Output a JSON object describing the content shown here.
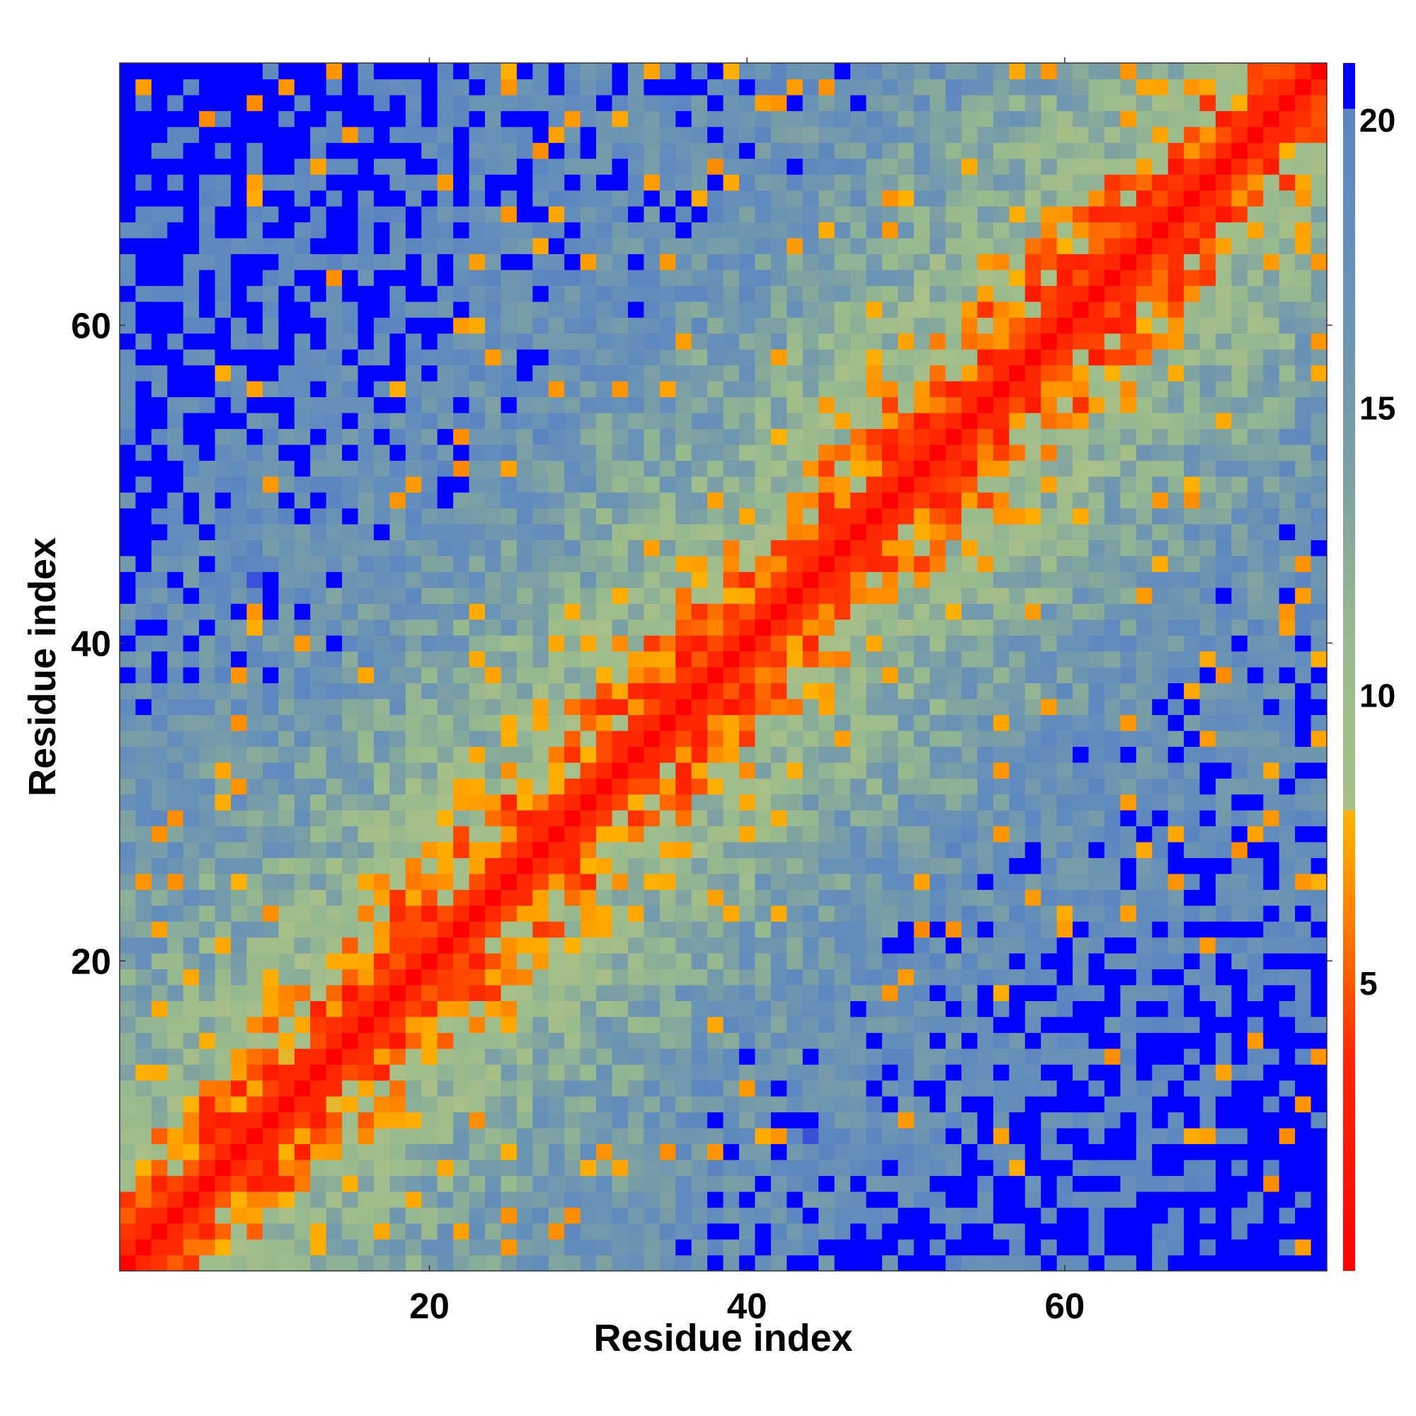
{
  "chart_data": {
    "type": "heatmap",
    "title": "",
    "xlabel": "Residue index",
    "ylabel": "Residue index",
    "n_residues": 76,
    "xlim": [
      0.5,
      76.5
    ],
    "ylim": [
      0.5,
      76.5
    ],
    "x_ticks": [
      20,
      40,
      60
    ],
    "y_ticks": [
      20,
      40,
      60
    ],
    "values_description": "Symmetric residue-residue distance map; diagonal ~0, distant residue pairs saturate at the top of the color scale.",
    "colorbar": {
      "min": 0,
      "max": 21,
      "ticks": [
        5,
        10,
        15,
        20
      ],
      "stops": [
        {
          "value": 0,
          "color": "#ff0000"
        },
        {
          "value": 3.8,
          "color": "#ff2a00"
        },
        {
          "value": 5.5,
          "color": "#ff6a00"
        },
        {
          "value": 7,
          "color": "#ff9a00"
        },
        {
          "value": 8,
          "color": "#ffb300"
        },
        {
          "value": 8.01,
          "color": "#a9bf87"
        },
        {
          "value": 11,
          "color": "#98ba8f"
        },
        {
          "value": 14,
          "color": "#7b9fa4"
        },
        {
          "value": 17,
          "color": "#6892b6"
        },
        {
          "value": 20.2,
          "color": "#5b85c1"
        },
        {
          "value": 20.21,
          "color": "#0000ff"
        },
        {
          "value": 21,
          "color": "#0000ff"
        }
      ]
    },
    "grid": false
  }
}
